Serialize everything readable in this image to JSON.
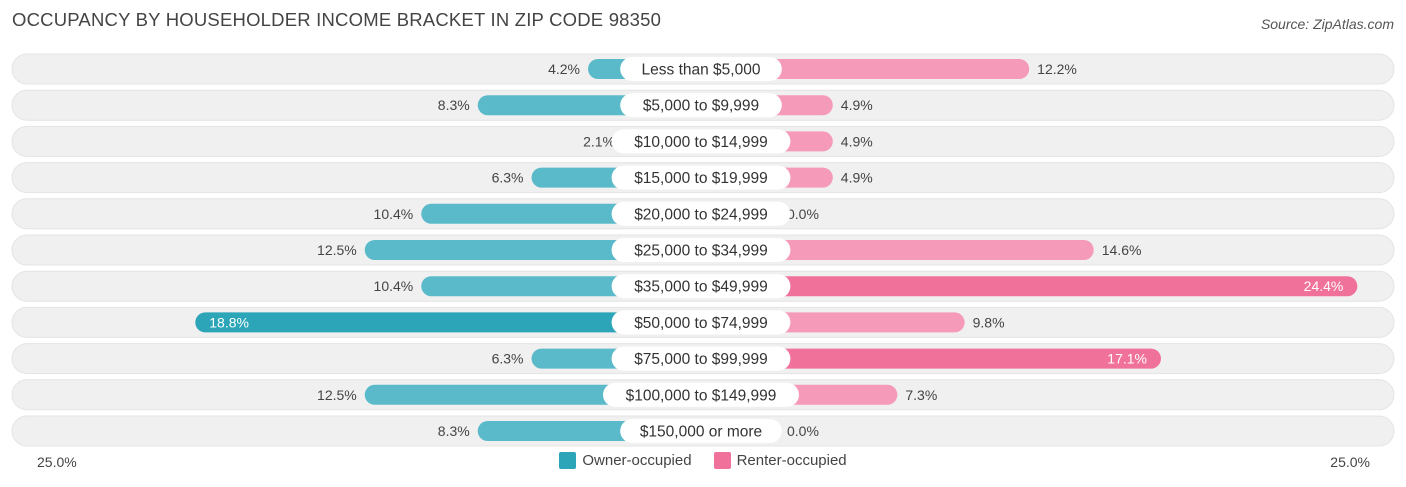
{
  "header": {
    "title": "OCCUPANCY BY HOUSEHOLDER INCOME BRACKET IN ZIP CODE 98350",
    "source": "Source: ZipAtlas.com"
  },
  "colors": {
    "owner": "#5bbac9",
    "owner_dark": "#2ba5b7",
    "renter": "#f59ab8",
    "renter_dark": "#f0729a",
    "row_bg": "#f0f0f0"
  },
  "chart_data": {
    "type": "bar",
    "orientation": "horizontal-diverging",
    "title": "OCCUPANCY BY HOUSEHOLDER INCOME BRACKET IN ZIP CODE 98350",
    "categories": [
      "Less than $5,000",
      "$5,000 to $9,999",
      "$10,000 to $14,999",
      "$15,000 to $19,999",
      "$20,000 to $24,999",
      "$25,000 to $34,999",
      "$35,000 to $49,999",
      "$50,000 to $74,999",
      "$75,000 to $99,999",
      "$100,000 to $149,999",
      "$150,000 or more"
    ],
    "series": [
      {
        "name": "Owner-occupied",
        "values": [
          4.2,
          8.3,
          2.1,
          6.3,
          10.4,
          12.5,
          10.4,
          18.8,
          6.3,
          12.5,
          8.3
        ],
        "labels": [
          "4.2%",
          "8.3%",
          "2.1%",
          "6.3%",
          "10.4%",
          "12.5%",
          "10.4%",
          "18.8%",
          "6.3%",
          "12.5%",
          "8.3%"
        ]
      },
      {
        "name": "Renter-occupied",
        "values": [
          12.2,
          4.9,
          4.9,
          4.9,
          0.0,
          14.6,
          24.4,
          9.8,
          17.1,
          7.3,
          0.0
        ],
        "labels": [
          "12.2%",
          "4.9%",
          "4.9%",
          "4.9%",
          "0.0%",
          "14.6%",
          "24.4%",
          "9.8%",
          "17.1%",
          "7.3%",
          "0.0%"
        ]
      }
    ],
    "xlim": [
      0,
      25.0
    ],
    "axis_labels": {
      "left": "25.0%",
      "right": "25.0%"
    },
    "legend_position": "bottom-center"
  },
  "legend": {
    "owner_label": "Owner-occupied",
    "renter_label": "Renter-occupied"
  }
}
